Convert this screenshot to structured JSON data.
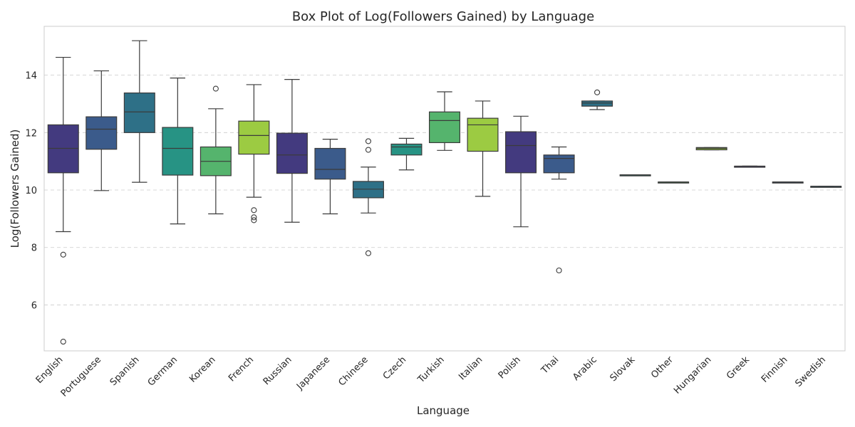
{
  "chart_data": {
    "type": "box",
    "title": "Box Plot of Log(Followers Gained) by Language",
    "xlabel": "Language",
    "ylabel": "Log(Followers Gained)",
    "ylim": [
      4.4,
      15.7
    ],
    "yticks": [
      6,
      8,
      10,
      12,
      14
    ],
    "grid": "y-dashed",
    "palette": "viridis",
    "categories": [
      "English",
      "Portuguese",
      "Spanish",
      "German",
      "Korean",
      "French",
      "Russian",
      "Japanese",
      "Chinese",
      "Czech",
      "Turkish",
      "Italian",
      "Polish",
      "Thai",
      "Arabic",
      "Slovak",
      "Other",
      "Hungarian",
      "Greek",
      "Finnish",
      "Swedish"
    ],
    "boxes": [
      {
        "label": "English",
        "whislo": 8.55,
        "q1": 10.6,
        "med": 11.45,
        "q3": 12.27,
        "whishi": 14.62,
        "fliers": [
          7.75,
          4.72
        ],
        "color": "#433a7f"
      },
      {
        "label": "Portuguese",
        "whislo": 9.98,
        "q1": 11.42,
        "med": 12.12,
        "q3": 12.55,
        "whishi": 14.15,
        "fliers": [],
        "color": "#3b5b8b"
      },
      {
        "label": "Spanish",
        "whislo": 10.27,
        "q1": 12.0,
        "med": 12.72,
        "q3": 13.38,
        "whishi": 15.2,
        "fliers": [],
        "color": "#2e7087"
      },
      {
        "label": "German",
        "whislo": 8.82,
        "q1": 10.52,
        "med": 11.45,
        "q3": 12.18,
        "whishi": 13.9,
        "fliers": [],
        "color": "#279384"
      },
      {
        "label": "Korean",
        "whislo": 9.17,
        "q1": 10.5,
        "med": 11.0,
        "q3": 11.5,
        "whishi": 12.83,
        "fliers": [
          13.53
        ],
        "color": "#55b46d"
      },
      {
        "label": "French",
        "whislo": 9.75,
        "q1": 11.25,
        "med": 11.9,
        "q3": 12.4,
        "whishi": 13.67,
        "fliers": [
          9.3,
          9.05,
          8.95
        ],
        "color": "#9ccb42"
      },
      {
        "label": "Russian",
        "whislo": 8.88,
        "q1": 10.58,
        "med": 11.22,
        "q3": 11.98,
        "whishi": 13.85,
        "fliers": [],
        "color": "#433a7f"
      },
      {
        "label": "Japanese",
        "whislo": 9.17,
        "q1": 10.38,
        "med": 10.72,
        "q3": 11.45,
        "whishi": 11.77,
        "fliers": [],
        "color": "#3b5b8b"
      },
      {
        "label": "Chinese",
        "whislo": 9.2,
        "q1": 9.73,
        "med": 10.03,
        "q3": 10.3,
        "whishi": 10.8,
        "fliers": [
          11.7,
          11.4,
          7.8
        ],
        "color": "#2e7087"
      },
      {
        "label": "Czech",
        "whislo": 10.7,
        "q1": 11.22,
        "med": 11.5,
        "q3": 11.6,
        "whishi": 11.8,
        "fliers": [],
        "color": "#279384"
      },
      {
        "label": "Turkish",
        "whislo": 11.38,
        "q1": 11.65,
        "med": 12.42,
        "q3": 12.72,
        "whishi": 13.42,
        "fliers": [],
        "color": "#55b46d"
      },
      {
        "label": "Italian",
        "whislo": 9.78,
        "q1": 11.35,
        "med": 12.27,
        "q3": 12.5,
        "whishi": 13.1,
        "fliers": [],
        "color": "#9ccb42"
      },
      {
        "label": "Polish",
        "whislo": 8.72,
        "q1": 10.6,
        "med": 11.55,
        "q3": 12.03,
        "whishi": 12.57,
        "fliers": [],
        "color": "#433a7f"
      },
      {
        "label": "Thai",
        "whislo": 10.38,
        "q1": 10.6,
        "med": 11.1,
        "q3": 11.22,
        "whishi": 11.5,
        "fliers": [
          7.2
        ],
        "color": "#3b5b8b"
      },
      {
        "label": "Arabic",
        "whislo": 12.8,
        "q1": 12.92,
        "med": 13.03,
        "q3": 13.1,
        "whishi": 13.1,
        "fliers": [
          13.4
        ],
        "color": "#2e7087"
      },
      {
        "label": "Slovak",
        "whislo": 10.53,
        "q1": 10.53,
        "med": 10.53,
        "q3": 10.53,
        "whishi": 10.53,
        "fliers": [],
        "color": "#279384"
      },
      {
        "label": "Other",
        "whislo": 10.28,
        "q1": 10.28,
        "med": 10.28,
        "q3": 10.28,
        "whishi": 10.28,
        "fliers": [],
        "color": "#55b46d"
      },
      {
        "label": "Hungarian",
        "whislo": 11.4,
        "q1": 11.4,
        "med": 11.45,
        "q3": 11.48,
        "whishi": 11.48,
        "fliers": [],
        "color": "#9ccb42"
      },
      {
        "label": "Greek",
        "whislo": 10.83,
        "q1": 10.83,
        "med": 10.83,
        "q3": 10.83,
        "whishi": 10.83,
        "fliers": [],
        "color": "#433a7f"
      },
      {
        "label": "Finnish",
        "whislo": 10.28,
        "q1": 10.28,
        "med": 10.28,
        "q3": 10.28,
        "whishi": 10.28,
        "fliers": [],
        "color": "#3b5b8b"
      },
      {
        "label": "Swedish",
        "whislo": 10.13,
        "q1": 10.13,
        "med": 10.13,
        "q3": 10.13,
        "whishi": 10.13,
        "fliers": [],
        "color": "#2e7087"
      }
    ]
  }
}
